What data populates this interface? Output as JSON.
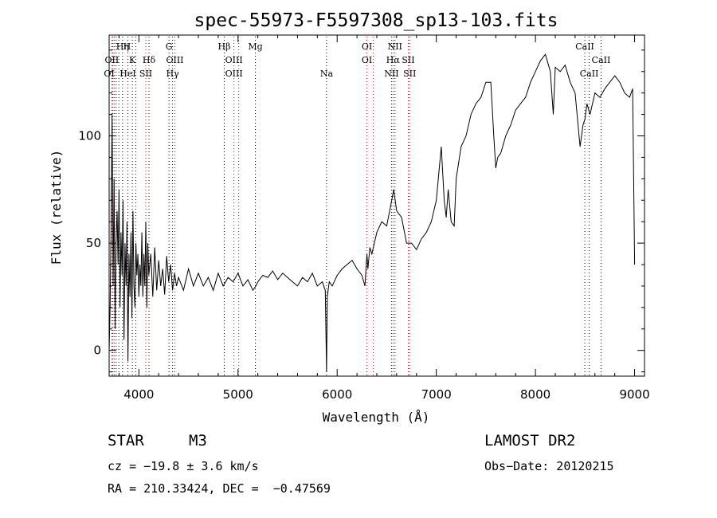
{
  "chart_data": {
    "type": "line",
    "title": "spec-55973-F5597308_sp13-103.fits",
    "xlabel": "Wavelength (Å)",
    "ylabel": "Flux (relative)",
    "xlim": [
      3700,
      9100
    ],
    "ylim": [
      -12,
      147
    ],
    "x_ticks": [
      4000,
      5000,
      6000,
      7000,
      8000,
      9000
    ],
    "y_ticks": [
      0,
      50,
      100
    ],
    "grid": false,
    "series": [
      {
        "x": [
          3700,
          3710,
          3720,
          3730,
          3740,
          3750,
          3760,
          3770,
          3780,
          3790,
          3800,
          3810,
          3820,
          3830,
          3840,
          3850,
          3860,
          3870,
          3880,
          3890,
          3900,
          3910,
          3920,
          3930,
          3940,
          3950,
          3960,
          3970,
          3980,
          3990,
          4000,
          4010,
          4020,
          4030,
          4040,
          4050,
          4060,
          4070,
          4080,
          4090,
          4100,
          4120,
          4140,
          4160,
          4180,
          4200,
          4220,
          4240,
          4260,
          4280,
          4300,
          4320,
          4340,
          4360,
          4380,
          4400,
          4450,
          4500,
          4550,
          4600,
          4650,
          4700,
          4750,
          4800,
          4850,
          4900,
          4950,
          5000,
          5050,
          5100,
          5150,
          5180,
          5200,
          5250,
          5300,
          5350,
          5400,
          5450,
          5500,
          5550,
          5600,
          5650,
          5700,
          5750,
          5800,
          5850,
          5880,
          5893,
          5900,
          5920,
          5950,
          6000,
          6050,
          6100,
          6150,
          6200,
          6250,
          6280,
          6300,
          6310,
          6330,
          6350,
          6400,
          6450,
          6500,
          6550,
          6570,
          6600,
          6650,
          6700,
          6750,
          6800,
          6850,
          6900,
          6950,
          7000,
          7030,
          7050,
          7080,
          7100,
          7120,
          7150,
          7180,
          7200,
          7250,
          7300,
          7350,
          7400,
          7450,
          7500,
          7550,
          7580,
          7600,
          7620,
          7650,
          7700,
          7750,
          7800,
          7850,
          7900,
          7950,
          8000,
          8050,
          8100,
          8150,
          8180,
          8200,
          8250,
          8300,
          8350,
          8400,
          8450,
          8480,
          8500,
          8520,
          8550,
          8600,
          8650,
          8700,
          8750,
          8800,
          8850,
          8900,
          8950,
          8980,
          9000
        ],
        "values": [
          0,
          20,
          60,
          110,
          30,
          80,
          10,
          50,
          65,
          40,
          75,
          20,
          55,
          35,
          70,
          5,
          50,
          30,
          60,
          -5,
          45,
          25,
          55,
          15,
          65,
          30,
          20,
          50,
          35,
          45,
          25,
          40,
          30,
          55,
          25,
          45,
          30,
          60,
          20,
          50,
          35,
          45,
          25,
          48,
          28,
          42,
          30,
          38,
          26,
          44,
          32,
          40,
          28,
          36,
          30,
          34,
          28,
          38,
          30,
          36,
          30,
          34,
          28,
          36,
          30,
          34,
          32,
          36,
          30,
          33,
          28,
          30,
          32,
          35,
          34,
          37,
          33,
          36,
          34,
          32,
          30,
          34,
          32,
          36,
          30,
          32,
          28,
          -10,
          25,
          32,
          30,
          35,
          38,
          40,
          42,
          38,
          35,
          30,
          45,
          38,
          48,
          45,
          55,
          60,
          58,
          70,
          75,
          65,
          62,
          50,
          50,
          47,
          52,
          55,
          60,
          70,
          85,
          95,
          70,
          62,
          75,
          60,
          58,
          80,
          95,
          100,
          110,
          115,
          118,
          125,
          125,
          100,
          85,
          90,
          92,
          100,
          105,
          112,
          115,
          118,
          125,
          130,
          135,
          138,
          130,
          110,
          132,
          130,
          133,
          125,
          120,
          95,
          105,
          108,
          115,
          110,
          120,
          118,
          122,
          125,
          128,
          125,
          120,
          118,
          122,
          40
        ]
      }
    ],
    "top_labels": [
      {
        "text": "Hη",
        "x": 3835,
        "row": 1
      },
      {
        "text": "H",
        "x": 3880,
        "row": 1
      },
      {
        "text": "G",
        "x": 4304,
        "row": 1
      },
      {
        "text": "Hβ",
        "x": 4861,
        "row": 1
      },
      {
        "text": "Mg",
        "x": 5175,
        "row": 1
      },
      {
        "text": "OI",
        "x": 6300,
        "row": 1
      },
      {
        "text": "NII",
        "x": 6583,
        "row": 1
      },
      {
        "text": "CaII",
        "x": 8498,
        "row": 1
      },
      {
        "text": "OII",
        "x": 3727,
        "row": 2
      },
      {
        "text": "K",
        "x": 3934,
        "row": 2
      },
      {
        "text": "Hδ",
        "x": 4102,
        "row": 2
      },
      {
        "text": "OIII",
        "x": 4363,
        "row": 2
      },
      {
        "text": "OIII",
        "x": 4959,
        "row": 2
      },
      {
        "text": "OI",
        "x": 6300,
        "row": 2
      },
      {
        "text": "Hα",
        "x": 6563,
        "row": 2
      },
      {
        "text": "SII",
        "x": 6717,
        "row": 2
      },
      {
        "text": "CaII",
        "x": 8662,
        "row": 2
      },
      {
        "text": "OI",
        "x": 3700,
        "row": 3
      },
      {
        "text": "HeI",
        "x": 3889,
        "row": 3
      },
      {
        "text": "SII",
        "x": 4070,
        "row": 3
      },
      {
        "text": "Hγ",
        "x": 4340,
        "row": 3
      },
      {
        "text": "OIII",
        "x": 4959,
        "row": 3
      },
      {
        "text": "Na",
        "x": 5893,
        "row": 3
      },
      {
        "text": "NII",
        "x": 6548,
        "row": 3
      },
      {
        "text": "SII",
        "x": 6731,
        "row": 3
      },
      {
        "text": "CaII",
        "x": 8542,
        "row": 3
      }
    ],
    "lines_black": [
      3734,
      3750,
      3771,
      3798,
      3835,
      3889,
      3934,
      3968,
      4102,
      4304,
      4340,
      4861,
      5175,
      5893,
      6548,
      6583,
      8498,
      8542,
      8662
    ],
    "lines_red": [
      3727,
      4070,
      4363,
      4959,
      5007,
      6300,
      6363,
      6563,
      6717,
      6731
    ]
  },
  "info": {
    "class": "STAR",
    "subclass": "M3",
    "survey": "LAMOST DR2",
    "cz": "cz = −19.8 ± 3.6 km/s",
    "obs_date": "Obs−Date: 20120215",
    "coords": "RA = 210.33424, DEC =  −0.47569"
  }
}
